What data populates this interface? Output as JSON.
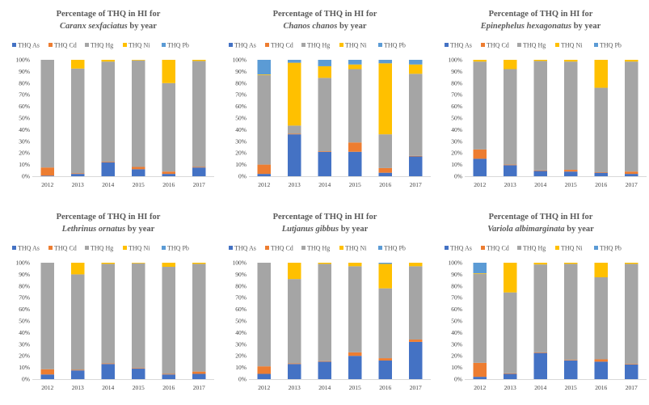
{
  "colors": {
    "THQ As": "#4472C4",
    "THQ Cd": "#ED7D31",
    "THQ Hg": "#A5A5A5",
    "THQ Ni": "#FFC000",
    "THQ Pb": "#5B9BD5"
  },
  "legend_entries": [
    "THQ As",
    "THQ Cd",
    "THQ Hg",
    "THQ Ni",
    "THQ Pb"
  ],
  "chart_data": [
    {
      "type": "bar",
      "stacked": true,
      "title_line1": "Percentage of THQ in HI for",
      "species": "Caranx sexfaciatus",
      "title_suffix": " by year",
      "categories": [
        "2012",
        "2013",
        "2014",
        "2015",
        "2016",
        "2017"
      ],
      "ylim": [
        0,
        100
      ],
      "yticks": [
        "0%",
        "10%",
        "20%",
        "30%",
        "40%",
        "50%",
        "60%",
        "70%",
        "80%",
        "90%",
        "100%"
      ],
      "legend_position": "top",
      "series": [
        {
          "name": "THQ As",
          "values": [
            0.5,
            2,
            12,
            6,
            2,
            7.5
          ]
        },
        {
          "name": "THQ Cd",
          "values": [
            7,
            0.5,
            0.5,
            2,
            2,
            0.5
          ]
        },
        {
          "name": "THQ Hg",
          "values": [
            92.5,
            90,
            86,
            91.5,
            76,
            91
          ]
        },
        {
          "name": "THQ Ni",
          "values": [
            0,
            7.5,
            1.5,
            0.5,
            20,
            1
          ]
        },
        {
          "name": "THQ Pb",
          "values": [
            0,
            0,
            0,
            0,
            0,
            0
          ]
        }
      ]
    },
    {
      "type": "bar",
      "stacked": true,
      "title_line1": "Percentage of THQ in HI for",
      "species": "Chanos chanos",
      "title_suffix": " by year",
      "categories": [
        "2012",
        "2013",
        "2014",
        "2015",
        "2016",
        "2017"
      ],
      "ylim": [
        0,
        100
      ],
      "yticks": [
        "0%",
        "10%",
        "20%",
        "30%",
        "40%",
        "50%",
        "60%",
        "70%",
        "80%",
        "90%",
        "100%"
      ],
      "legend_position": "top",
      "series": [
        {
          "name": "THQ As",
          "values": [
            2,
            36,
            21,
            21,
            3,
            17
          ]
        },
        {
          "name": "THQ Cd",
          "values": [
            8,
            0.5,
            0.5,
            8,
            4,
            0.5
          ]
        },
        {
          "name": "THQ Hg",
          "values": [
            77,
            7,
            63,
            63,
            29,
            70.5
          ]
        },
        {
          "name": "THQ Ni",
          "values": [
            0.5,
            54,
            10,
            4,
            61,
            8
          ]
        },
        {
          "name": "THQ Pb",
          "values": [
            12.5,
            2.5,
            5.5,
            4,
            3,
            4
          ]
        }
      ]
    },
    {
      "type": "bar",
      "stacked": true,
      "title_line1": "Percentage of THQ in HI for",
      "species": "Epinephelus hexagonatus",
      "title_suffix": " by year",
      "categories": [
        "2012",
        "2013",
        "2014",
        "2015",
        "2016",
        "2017"
      ],
      "ylim": [
        0,
        100
      ],
      "yticks": [
        "0%",
        "10%",
        "20%",
        "30%",
        "40%",
        "50%",
        "60%",
        "70%",
        "80%",
        "90%",
        "100%"
      ],
      "legend_position": "top",
      "series": [
        {
          "name": "THQ As",
          "values": [
            15,
            9.5,
            4.5,
            4,
            3,
            2
          ]
        },
        {
          "name": "THQ Cd",
          "values": [
            8,
            0.5,
            0.5,
            1.5,
            0.5,
            2
          ]
        },
        {
          "name": "THQ Hg",
          "values": [
            75.5,
            82,
            94,
            93,
            72.5,
            94.5
          ]
        },
        {
          "name": "THQ Ni",
          "values": [
            1.5,
            8,
            1,
            1.5,
            24,
            1.5
          ]
        },
        {
          "name": "THQ Pb",
          "values": [
            0,
            0,
            0,
            0,
            0,
            0
          ]
        }
      ]
    },
    {
      "type": "bar",
      "stacked": true,
      "title_line1": "Percentage of THQ in HI for",
      "species": "Lethrinus ornatus",
      "title_suffix": " by year",
      "categories": [
        "2012",
        "2013",
        "2014",
        "2015",
        "2016",
        "2017"
      ],
      "ylim": [
        0,
        100
      ],
      "yticks": [
        "0%",
        "10%",
        "20%",
        "30%",
        "40%",
        "50%",
        "60%",
        "70%",
        "80%",
        "90%",
        "100%"
      ],
      "legend_position": "top",
      "series": [
        {
          "name": "THQ As",
          "values": [
            4,
            7.5,
            13,
            9,
            4,
            4.5
          ]
        },
        {
          "name": "THQ Cd",
          "values": [
            4.5,
            0.5,
            0.5,
            0.5,
            0.5,
            2
          ]
        },
        {
          "name": "THQ Hg",
          "values": [
            91.5,
            82,
            85.5,
            90,
            92,
            92.5
          ]
        },
        {
          "name": "THQ Ni",
          "values": [
            0,
            10,
            1,
            0.5,
            3.5,
            1
          ]
        },
        {
          "name": "THQ Pb",
          "values": [
            0,
            0,
            0,
            0,
            0,
            0
          ]
        }
      ]
    },
    {
      "type": "bar",
      "stacked": true,
      "title_line1": "Percentage of THQ in HI for",
      "species": "Lutjanus gibbus",
      "title_suffix": " by year",
      "categories": [
        "2012",
        "2013",
        "2014",
        "2015",
        "2016",
        "2017"
      ],
      "ylim": [
        0,
        100
      ],
      "yticks": [
        "0%",
        "10%",
        "20%",
        "30%",
        "40%",
        "50%",
        "60%",
        "70%",
        "80%",
        "90%",
        "100%"
      ],
      "legend_position": "top",
      "series": [
        {
          "name": "THQ As",
          "values": [
            4.5,
            13,
            15,
            20,
            16,
            32
          ]
        },
        {
          "name": "THQ Cd",
          "values": [
            6.5,
            0.5,
            0.5,
            3,
            2,
            2
          ]
        },
        {
          "name": "THQ Hg",
          "values": [
            89,
            72.5,
            83.5,
            74,
            60,
            63
          ]
        },
        {
          "name": "THQ Ni",
          "values": [
            0,
            14,
            1,
            3,
            21,
            3
          ]
        },
        {
          "name": "THQ Pb",
          "values": [
            0,
            0,
            0,
            0,
            1,
            0
          ]
        }
      ]
    },
    {
      "type": "bar",
      "stacked": true,
      "title_line1": "Percentage of THQ in HI for",
      "species": "Variola albimarginata",
      "title_suffix": " by year",
      "categories": [
        "2012",
        "2013",
        "2014",
        "2015",
        "2016",
        "2017"
      ],
      "ylim": [
        0,
        100
      ],
      "yticks": [
        "0%",
        "10%",
        "20%",
        "30%",
        "40%",
        "50%",
        "60%",
        "70%",
        "80%",
        "90%",
        "100%"
      ],
      "legend_position": "top",
      "series": [
        {
          "name": "THQ As",
          "values": [
            2,
            4.5,
            22.5,
            16,
            15,
            12.5
          ]
        },
        {
          "name": "THQ Cd",
          "values": [
            12,
            0.5,
            0.5,
            0.5,
            2,
            0.5
          ]
        },
        {
          "name": "THQ Hg",
          "values": [
            76.5,
            69.5,
            75.5,
            82.5,
            70.5,
            86
          ]
        },
        {
          "name": "THQ Ni",
          "values": [
            0.5,
            25.5,
            1.5,
            1,
            12.5,
            1
          ]
        },
        {
          "name": "THQ Pb",
          "values": [
            9,
            0,
            0,
            0,
            0,
            0
          ]
        }
      ]
    }
  ]
}
